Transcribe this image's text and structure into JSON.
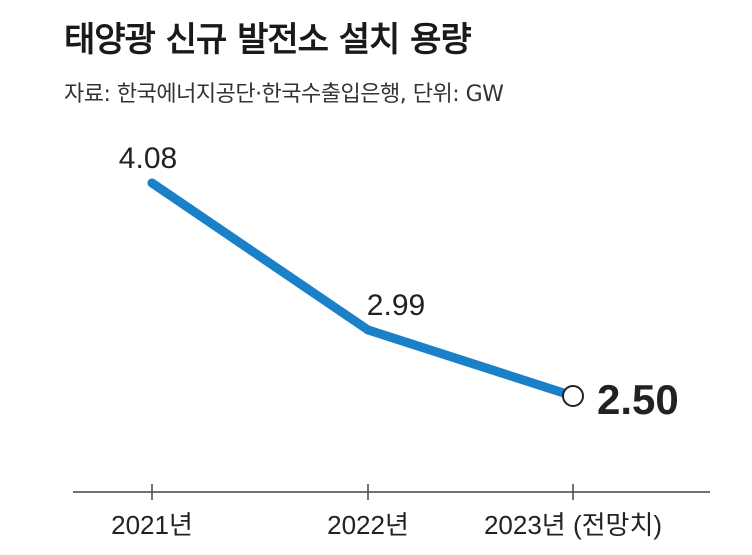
{
  "title": "태양광 신규 발전소 설치 용량",
  "source": "자료: 한국에너지공단·한국수출입은행, 단위: GW",
  "colors": {
    "line": "#1a80c8",
    "axis": "#444444"
  },
  "chart_data": {
    "type": "line",
    "categories": [
      "2021년",
      "2022년",
      "2023년 (전망치)"
    ],
    "values": [
      4.08,
      2.99,
      2.5
    ],
    "data_labels": [
      "4.08",
      "2.99",
      "2.50"
    ],
    "title": "태양광 신규 발전소 설치 용량",
    "xlabel": "",
    "ylabel": "",
    "unit": "GW",
    "grid": false,
    "legend": "none",
    "highlight_last": true
  }
}
